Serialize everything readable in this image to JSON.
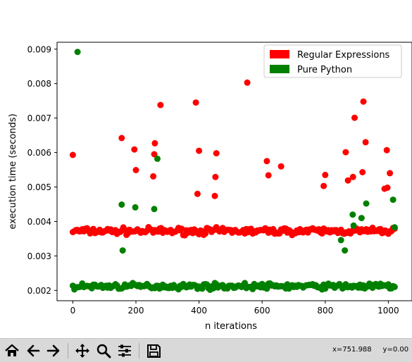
{
  "chart_data": {
    "type": "scatter",
    "title": "",
    "xlabel": "n iterations",
    "ylabel": "execution time (seconds)",
    "xlim": [
      -50,
      1075
    ],
    "ylim": [
      0.0017,
      0.0092
    ],
    "xticks": [
      0,
      200,
      400,
      600,
      800,
      1000
    ],
    "yticks": [
      0.002,
      0.003,
      0.004,
      0.005,
      0.006,
      0.007,
      0.008,
      0.009
    ],
    "xtick_labels": [
      "0",
      "200",
      "400",
      "600",
      "800",
      "1000"
    ],
    "ytick_labels": [
      "0.002",
      "0.003",
      "0.004",
      "0.005",
      "0.006",
      "0.007",
      "0.008",
      "0.009"
    ],
    "legend_position": "top-right",
    "series": [
      {
        "name": "Regular Expressions",
        "color": "#ff0000",
        "baseline": {
          "x_start": 0,
          "x_end": 1020,
          "step": 5,
          "center": 0.00372,
          "spread": 0.00014
        },
        "points": [
          [
            0,
            0.00593
          ],
          [
            155,
            0.00642
          ],
          [
            195,
            0.00609
          ],
          [
            200,
            0.00549
          ],
          [
            255,
            0.00531
          ],
          [
            258,
            0.00595
          ],
          [
            260,
            0.00627
          ],
          [
            278,
            0.00738
          ],
          [
            390,
            0.00745
          ],
          [
            395,
            0.0048
          ],
          [
            400,
            0.00605
          ],
          [
            450,
            0.00474
          ],
          [
            452,
            0.00529
          ],
          [
            455,
            0.00598
          ],
          [
            553,
            0.00803
          ],
          [
            615,
            0.00575
          ],
          [
            620,
            0.00534
          ],
          [
            660,
            0.0056
          ],
          [
            795,
            0.00503
          ],
          [
            800,
            0.00535
          ],
          [
            865,
            0.00601
          ],
          [
            872,
            0.00519
          ],
          [
            888,
            0.00529
          ],
          [
            893,
            0.00701
          ],
          [
            918,
            0.00543
          ],
          [
            921,
            0.00748
          ],
          [
            928,
            0.0063
          ],
          [
            988,
            0.00495
          ],
          [
            995,
            0.00607
          ],
          [
            997,
            0.00498
          ],
          [
            1005,
            0.0054
          ]
        ]
      },
      {
        "name": "Pure Python",
        "color": "#008000",
        "baseline": {
          "x_start": 0,
          "x_end": 1020,
          "step": 5,
          "center": 0.00212,
          "spread": 0.00012
        },
        "points": [
          [
            15,
            0.00892
          ],
          [
            155,
            0.00449
          ],
          [
            158,
            0.00316
          ],
          [
            198,
            0.00441
          ],
          [
            258,
            0.00436
          ],
          [
            268,
            0.00582
          ],
          [
            850,
            0.00346
          ],
          [
            862,
            0.00316
          ],
          [
            887,
            0.0042
          ],
          [
            890,
            0.00388
          ],
          [
            915,
            0.0041
          ],
          [
            930,
            0.00452
          ],
          [
            1015,
            0.00463
          ],
          [
            1020,
            0.00383
          ]
        ]
      }
    ]
  },
  "toolbar": {
    "buttons": [
      {
        "name": "home-button",
        "icon": "home-icon"
      },
      {
        "name": "back-button",
        "icon": "arrow-left-icon"
      },
      {
        "name": "forward-button",
        "icon": "arrow-right-icon"
      },
      {
        "name": "pan-button",
        "icon": "move-icon"
      },
      {
        "name": "zoom-button",
        "icon": "magnifier-icon"
      },
      {
        "name": "configure-subplots-button",
        "icon": "sliders-icon"
      },
      {
        "name": "save-button",
        "icon": "floppy-disk-icon"
      }
    ],
    "coordinates": "x=751.988     y=0.00"
  }
}
